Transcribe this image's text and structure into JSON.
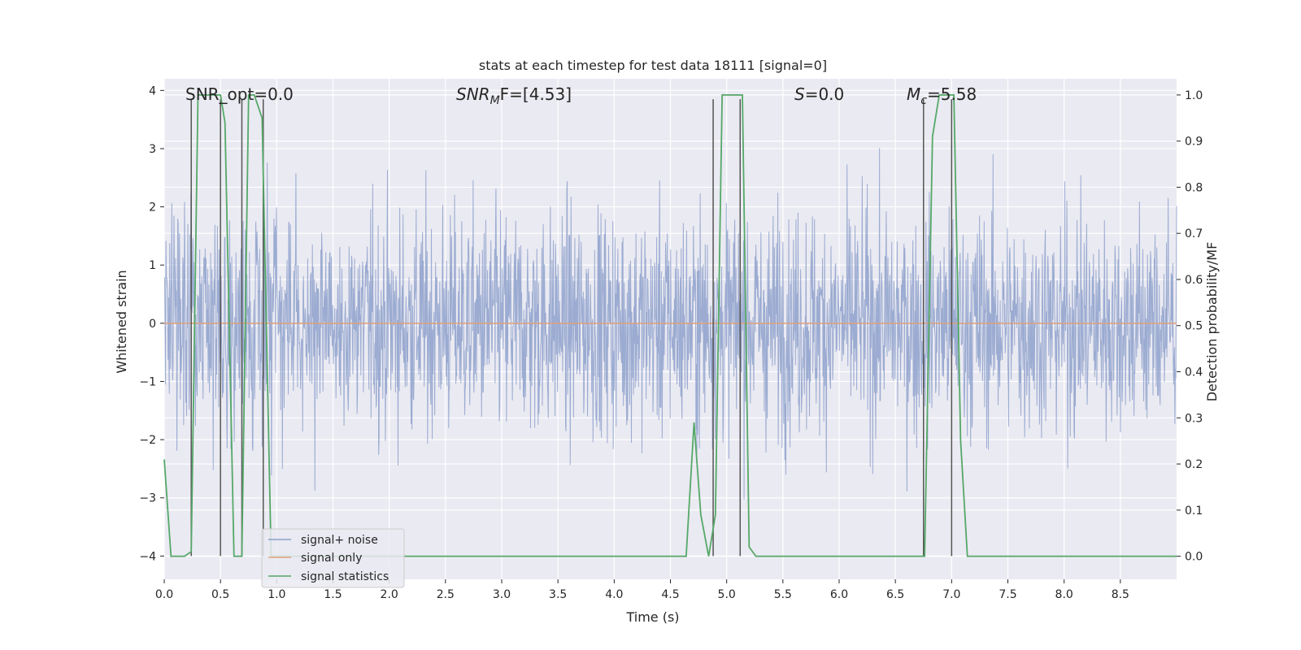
{
  "chart_data": {
    "type": "line",
    "title": "stats at each timestep for test data 18111 [signal=0]",
    "xlabel": "Time (s)",
    "ylabel": "Whitened strain",
    "ylabel_right": "Detection probability/MF",
    "xlim": [
      0.0,
      9.0
    ],
    "ylim": [
      -4.4,
      4.2
    ],
    "ylim_right": [
      -0.05,
      1.035
    ],
    "x_ticks": [
      "0.0",
      "0.5",
      "1.0",
      "1.5",
      "2.0",
      "2.5",
      "3.0",
      "3.5",
      "4.0",
      "4.5",
      "5.0",
      "5.5",
      "6.0",
      "6.5",
      "7.0",
      "7.5",
      "8.0",
      "8.5"
    ],
    "x_tick_values": [
      0.0,
      0.5,
      1.0,
      1.5,
      2.0,
      2.5,
      3.0,
      3.5,
      4.0,
      4.5,
      5.0,
      5.5,
      6.0,
      6.5,
      7.0,
      7.5,
      8.0,
      8.5
    ],
    "y_ticks": [
      "−4",
      "−3",
      "−2",
      "−1",
      "0",
      "1",
      "2",
      "3",
      "4"
    ],
    "y_tick_values": [
      -4,
      -3,
      -2,
      -1,
      0,
      1,
      2,
      3,
      4
    ],
    "y_ticks_right": [
      "0.0",
      "0.1",
      "0.2",
      "0.3",
      "0.4",
      "0.5",
      "0.6",
      "0.7",
      "0.8",
      "0.9",
      "1.0"
    ],
    "y_tick_values_right": [
      0.0,
      0.1,
      0.2,
      0.3,
      0.4,
      0.5,
      0.6,
      0.7,
      0.8,
      0.9,
      1.0
    ],
    "grid": true,
    "legend_position": "lower-left",
    "annotations": {
      "snr_opt": "SNR_opt=0.0",
      "snr_mf_main": "SNR",
      "snr_mf_sub": "M",
      "snr_mf_rest": "F=[4.53]",
      "s_main": "S",
      "s_rest": "=0.0",
      "mc_main": "M",
      "mc_sub": "c",
      "mc_rest": "=5.58"
    },
    "series": [
      {
        "name": "signal+ noise",
        "color": "#8da0cb",
        "axis": "left",
        "description_values": "dense noise, roughly |y| < 2.5 with spikes to about ±4"
      },
      {
        "name": "signal only",
        "color": "#e1a17b",
        "axis": "left",
        "x": [
          0.0,
          9.0
        ],
        "y": [
          0.0,
          0.0
        ]
      },
      {
        "name": "signal statistics",
        "color": "#55a868",
        "axis": "right",
        "x": [
          0.0,
          0.06,
          0.18,
          0.24,
          0.3,
          0.5,
          0.54,
          0.62,
          0.69,
          0.75,
          0.8,
          0.87,
          0.95,
          1.01,
          1.07,
          4.58,
          4.64,
          4.71,
          4.77,
          4.84,
          4.9,
          4.96,
          5.02,
          5.08,
          5.14,
          5.2,
          5.26,
          6.7,
          6.76,
          6.83,
          6.89,
          6.95,
          7.02,
          7.08,
          7.14,
          9.0
        ],
        "y": [
          0.21,
          0.0,
          0.0,
          0.01,
          1.0,
          1.0,
          0.94,
          0.0,
          0.0,
          1.0,
          1.0,
          0.95,
          0.0,
          0.0,
          0.0,
          0.0,
          0.0,
          0.29,
          0.09,
          0.0,
          0.09,
          1.0,
          1.0,
          1.0,
          1.0,
          0.02,
          0.0,
          0.0,
          0.0,
          0.91,
          1.0,
          1.0,
          1.0,
          0.25,
          0.0,
          0.0
        ]
      }
    ],
    "vertical_markers": {
      "color": "#555555",
      "x": [
        0.24,
        0.5,
        0.69,
        0.88,
        4.88,
        5.12,
        6.75,
        7.0
      ]
    }
  }
}
